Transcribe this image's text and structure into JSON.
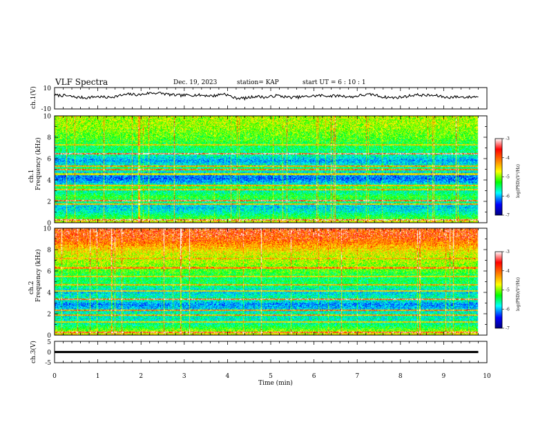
{
  "header": {
    "title": "VLF Spectra",
    "date": "Dec. 19, 2023",
    "station": "station= KAP",
    "start": "start  UT =  6 : 10 : 1"
  },
  "chart_data": [
    {
      "type": "line",
      "name": "ch1-waveform",
      "ylabel": "ch.1(V)",
      "ylim": [
        -10,
        10
      ],
      "yticks": [
        "10",
        "-10"
      ],
      "xlim": [
        0,
        10
      ],
      "trace": {
        "x_end_min": 9.8,
        "sample_count": 420,
        "mean": 1.5,
        "amplitude_range": [
          -3,
          6
        ],
        "values_sampled": [
          2.8,
          2.5,
          1.0,
          0.5,
          1.6,
          0.7,
          2.2,
          3.8,
          3.2,
          5.0,
          4.8,
          3.2,
          2.6,
          3.1,
          2.8,
          2.2,
          4.4,
          0.3,
          0.0,
          1.9,
          0.8,
          2.6,
          0.9,
          1.0,
          1.8,
          2.6,
          2.1,
          2.4,
          1.1,
          2.9,
          3.6,
          1.2,
          0.5,
          1.4,
          3.2,
          2.8,
          2.5,
          0.8,
          1.3,
          1.0,
          1.7
        ]
      },
      "color": "#000000"
    },
    {
      "type": "heatmap",
      "name": "ch1-spectrogram",
      "ylabel": "ch.1\nFrequency  (kHz)",
      "yticks": [
        "0",
        "2",
        "4",
        "6",
        "8",
        "10"
      ],
      "ylim": [
        0,
        10
      ],
      "xlim": [
        0,
        10
      ],
      "x_end_min": 9.8,
      "colorbar": {
        "label": "log(PSD)(V²/Hz)",
        "range": [
          -7,
          -3
        ],
        "ticks": [
          "-3",
          "-4",
          "-5",
          "-6",
          "-7"
        ],
        "colors": [
          "#000080",
          "#0000ff",
          "#00ffff",
          "#00ff00",
          "#ffff00",
          "#ff8000",
          "#ff0000",
          "#ffffff"
        ]
      },
      "profile_freq_khz": [
        0.0,
        0.3,
        0.6,
        1.0,
        1.5,
        2.0,
        2.4,
        2.9,
        3.3,
        3.7,
        4.1,
        4.6,
        5.0,
        5.4,
        5.8,
        6.3,
        6.7,
        7.2,
        7.8,
        8.4,
        9.0,
        9.5,
        10.0
      ],
      "profile_logpsd": [
        -4.2,
        -4.9,
        -5.2,
        -5.6,
        -5.8,
        -5.3,
        -5.0,
        -5.5,
        -5.0,
        -5.8,
        -6.2,
        -6.0,
        -5.2,
        -5.6,
        -6.0,
        -5.5,
        -5.3,
        -5.2,
        -4.9,
        -4.8,
        -4.6,
        -4.6,
        -4.5
      ],
      "bands_khz": [
        [
          0.25,
          -3.2
        ],
        [
          1.7,
          -4.0
        ],
        [
          2.05,
          -3.4
        ],
        [
          3.1,
          -4.0
        ],
        [
          3.45,
          -4.0
        ],
        [
          4.55,
          -4.3
        ],
        [
          4.95,
          -3.6
        ],
        [
          5.3,
          -3.9
        ],
        [
          6.45,
          -3.2
        ],
        [
          7.3,
          -4.2
        ]
      ]
    },
    {
      "type": "heatmap",
      "name": "ch2-spectrogram",
      "ylabel": "ch.2\nFrequency  (kHz)",
      "yticks": [
        "0",
        "2",
        "4",
        "6",
        "8",
        "10"
      ],
      "ylim": [
        0,
        10
      ],
      "xlim": [
        0,
        10
      ],
      "x_end_min": 9.8,
      "colorbar": {
        "label": "log(PSD)(V²/Hz)",
        "range": [
          -7,
          -3
        ],
        "ticks": [
          "-3",
          "-4",
          "-5",
          "-6",
          "-7"
        ],
        "colors": [
          "#000080",
          "#0000ff",
          "#00ffff",
          "#00ff00",
          "#ffff00",
          "#ff8000",
          "#ff0000",
          "#ffffff"
        ]
      },
      "profile_freq_khz": [
        0.0,
        0.3,
        0.6,
        1.0,
        1.5,
        2.0,
        2.4,
        2.9,
        3.3,
        3.7,
        4.1,
        4.6,
        5.0,
        5.4,
        5.8,
        6.3,
        6.7,
        7.2,
        7.8,
        8.4,
        9.0,
        9.5,
        10.0
      ],
      "profile_logpsd": [
        -4.3,
        -4.6,
        -5.0,
        -5.4,
        -5.6,
        -5.5,
        -5.8,
        -6.1,
        -5.4,
        -5.6,
        -5.8,
        -5.3,
        -5.2,
        -5.3,
        -5.0,
        -4.8,
        -4.6,
        -4.5,
        -4.3,
        -3.9,
        -3.6,
        -3.5,
        -3.5
      ],
      "bands_khz": [
        [
          0.2,
          -3.4
        ],
        [
          1.2,
          -4.2
        ],
        [
          1.85,
          -3.9
        ],
        [
          2.3,
          -3.8
        ],
        [
          3.35,
          -3.4
        ],
        [
          4.1,
          -4.2
        ],
        [
          4.7,
          -4.0
        ],
        [
          5.5,
          -4.2
        ],
        [
          6.3,
          -3.8
        ],
        [
          7.2,
          -4.0
        ]
      ]
    },
    {
      "type": "line",
      "name": "ch3-waveform",
      "ylabel": "ch.3(V)",
      "ylim": [
        -5,
        5
      ],
      "yticks": [
        "5",
        "0",
        "-5"
      ],
      "xlim": [
        0,
        10
      ],
      "xticks": [
        "0",
        "1",
        "2",
        "3",
        "4",
        "5",
        "6",
        "7",
        "8",
        "9",
        "10"
      ],
      "xlabel": "Time  (min)",
      "trace": {
        "x_end_min": 9.8,
        "value": 0,
        "thickness_v": 1.0
      },
      "color": "#000000"
    }
  ]
}
